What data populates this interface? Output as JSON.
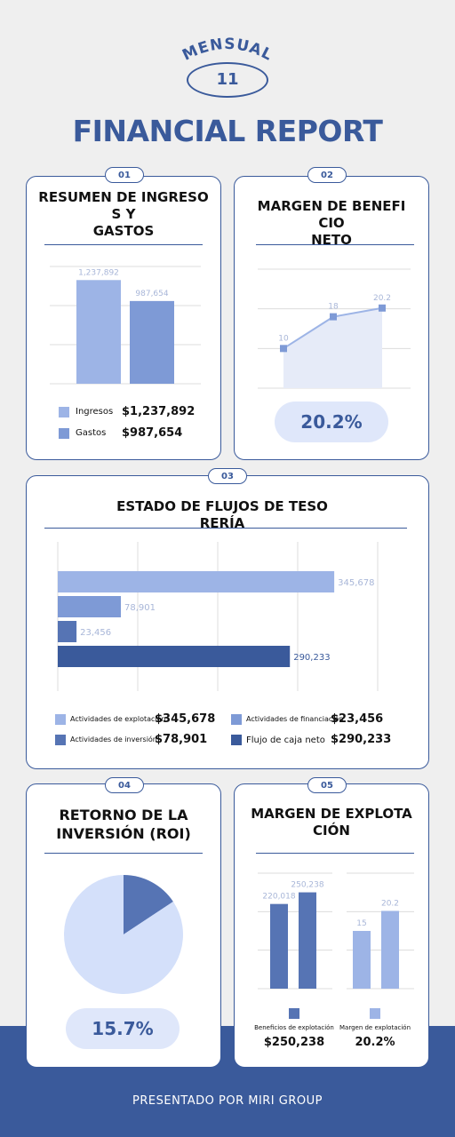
{
  "header": {
    "subtitle": "MENSUAL",
    "month": "11",
    "title": "FINANCIAL REPORT"
  },
  "cards": [
    {
      "badge": "01",
      "title": "RESUMEN DE INGRESO\nS Y\nGASTOS"
    },
    {
      "badge": "02",
      "title": "MARGEN DE BENEFI\nCIO\nNETO"
    },
    {
      "badge": "03",
      "title": "ESTADO DE FLUJOS DE TESO\nRERÍA"
    },
    {
      "badge": "04",
      "title": "RETORNO DE LA\nINVERSIÓN (ROI)"
    },
    {
      "badge": "05",
      "title": "MARGEN DE EXPLOTA\nCIÓN"
    }
  ],
  "chart_data": [
    {
      "type": "bar",
      "categories": [
        "Ingresos",
        "Gastos"
      ],
      "values": [
        1237892,
        987654
      ],
      "data_labels": [
        "1,237,892",
        "987,654"
      ],
      "ylim": [
        0,
        1400000
      ],
      "grid": true,
      "colors": [
        "#9db4e6",
        "#7e9ad6"
      ],
      "legend": [
        {
          "label": "Ingresos",
          "value": "$1,237,892",
          "color": "#9db4e6"
        },
        {
          "label": "Gastos",
          "value": "$987,654",
          "color": "#7e9ad6"
        }
      ]
    },
    {
      "type": "area",
      "x": [
        1,
        2,
        3
      ],
      "values": [
        10,
        18,
        20.2
      ],
      "data_labels": [
        "10",
        "18",
        "20.2"
      ],
      "ylim": [
        0,
        30
      ],
      "grid": true,
      "color": "#7e9ad6",
      "highlight": "20.2%"
    },
    {
      "type": "bar",
      "orientation": "horizontal",
      "categories": [
        "Actividades de explotación",
        "Actividades de inversión",
        "Actividades de financiación",
        "Flujo de caja neto"
      ],
      "values": [
        345678,
        78901,
        23456,
        290233
      ],
      "data_labels": [
        "345,678",
        "78,901",
        "23,456",
        "290,233"
      ],
      "xlim": [
        0,
        400000
      ],
      "grid": true,
      "colors": [
        "#9db4e6",
        "#7e9ad6",
        "#5674b4",
        "#3a5a9b"
      ],
      "legend": [
        {
          "label": "Actividades de explotación",
          "value": "$345,678",
          "color": "#9db4e6"
        },
        {
          "label": "Actividades de financiación",
          "value": "$23,456",
          "color": "#7e9ad6"
        },
        {
          "label": "Actividades de inversión",
          "value": "$78,901",
          "color": "#5674b4"
        },
        {
          "label": "Flujo de caja neto",
          "value": "$290,233",
          "color": "#3a5a9b"
        }
      ]
    },
    {
      "type": "pie",
      "values": [
        15.7,
        84.3
      ],
      "colors": [
        "#5674b4",
        "#d4e0fa"
      ],
      "highlight": "15.7%"
    },
    {
      "type": "bar",
      "groups": [
        {
          "name": "Beneficios de explotación",
          "values": [
            220018,
            250238
          ],
          "data_labels": [
            "220,018",
            "250,238"
          ],
          "ylim": [
            0,
            300000
          ],
          "color": "#5674b4",
          "summary": "$250,238"
        },
        {
          "name": "Margen de explotación",
          "values": [
            15,
            20.2
          ],
          "data_labels": [
            "15",
            "20.2"
          ],
          "ylim": [
            0,
            30
          ],
          "color": "#9db4e6",
          "summary": "20.2%"
        }
      ],
      "grid": true
    }
  ],
  "footer": {
    "text": "PRESENTADO POR MIRI GROUP"
  }
}
